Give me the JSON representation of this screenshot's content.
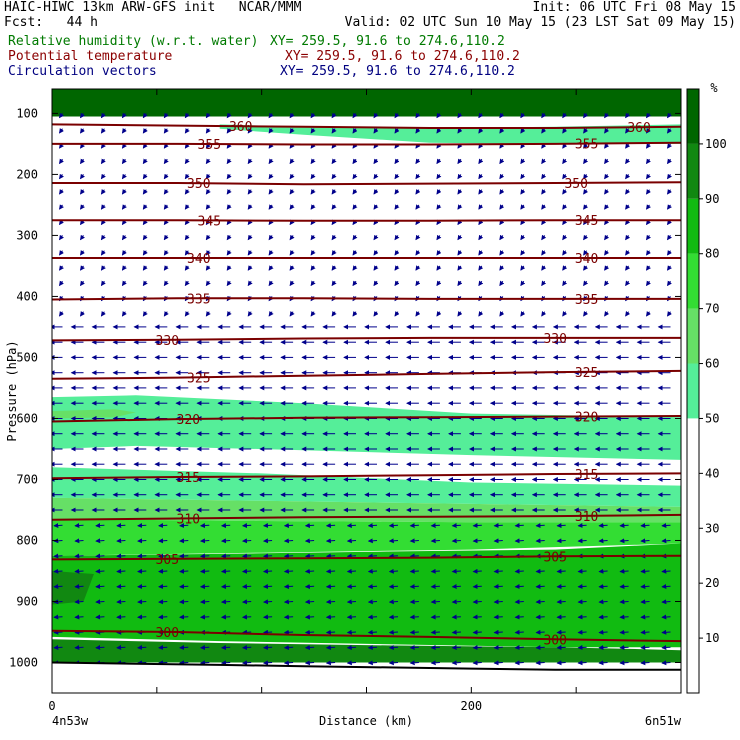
{
  "header": {
    "line1_left": "HAIC-HIWC 13km ARW-GFS init   NCAR/MMM",
    "line1_right": "Init: 06 UTC Fri 08 May 15",
    "line2_left": "Fcst:   44 h",
    "line2_right": "Valid: 02 UTC Sun 10 May 15 (23 LST Sat 09 May 15)",
    "field1_name": "Relative humidity (w.r.t. water)",
    "field1_xy": "XY= 259.5, 91.6 to 274.6,110.2",
    "field2_name": "Potential temperature",
    "field2_xy": "XY= 259.5, 91.6 to 274.6,110.2",
    "field3_name": "Circulation vectors",
    "field3_xy": "XY= 259.5, 91.6 to 274.6,110.2"
  },
  "colors": {
    "rh_text": "#007a00",
    "theta_text": "#8b0000",
    "vector_text": "#000080",
    "theta_line": "#7a0000",
    "vector": "#00008b"
  },
  "chart_data": {
    "type": "cross-section",
    "ylabel": "Pressure (hPa)",
    "xlabel": "Distance (km)",
    "x_ticks": [
      "0",
      "200"
    ],
    "x_end_labels": [
      "4n53w",
      "6n51w"
    ],
    "y_ticks": [
      "100",
      "200",
      "300",
      "400",
      "500",
      "600",
      "700",
      "800",
      "900",
      "1000"
    ],
    "xlim": [
      0,
      300
    ],
    "ylim": [
      1050,
      60
    ],
    "colorbar": {
      "unit": "%",
      "ticks": [
        "10",
        "20",
        "30",
        "40",
        "50",
        "60",
        "70",
        "80",
        "90",
        "100"
      ],
      "levels": [
        0,
        50,
        60,
        70,
        80,
        90,
        100,
        110
      ],
      "colors": [
        "#ffffff",
        "#55ee99",
        "#66e066",
        "#33dd33",
        "#11bb11",
        "#118811",
        "#006600",
        "#ff8080"
      ]
    },
    "potential_temperature_contours": [
      {
        "value": 360,
        "label": "360",
        "x": [
          0,
          60,
          120,
          180,
          240,
          300
        ],
        "p": [
          118,
          120,
          122,
          124,
          124,
          122
        ]
      },
      {
        "value": 355,
        "label": "355",
        "x": [
          0,
          60,
          120,
          180,
          240,
          300
        ],
        "p": [
          150,
          150,
          151,
          151,
          150,
          148
        ]
      },
      {
        "value": 350,
        "label": "350",
        "x": [
          0,
          60,
          120,
          180,
          240,
          300
        ],
        "p": [
          214,
          214,
          216,
          215,
          214,
          213
        ]
      },
      {
        "value": 345,
        "label": "345",
        "x": [
          0,
          60,
          120,
          180,
          240,
          300
        ],
        "p": [
          275,
          275,
          276,
          276,
          275,
          275
        ]
      },
      {
        "value": 340,
        "label": "340",
        "x": [
          0,
          60,
          120,
          180,
          240,
          300
        ],
        "p": [
          337,
          337,
          337,
          337,
          337,
          337
        ]
      },
      {
        "value": 335,
        "label": "335",
        "x": [
          0,
          60,
          120,
          180,
          240,
          300
        ],
        "p": [
          405,
          403,
          403,
          404,
          404,
          404
        ]
      },
      {
        "value": 330,
        "label": "330",
        "x": [
          0,
          60,
          120,
          180,
          240,
          300
        ],
        "p": [
          472,
          471,
          469,
          468,
          468,
          468
        ]
      },
      {
        "value": 325,
        "label": "325",
        "x": [
          0,
          60,
          120,
          180,
          240,
          300
        ],
        "p": [
          535,
          533,
          530,
          527,
          524,
          522
        ]
      },
      {
        "value": 320,
        "label": "320",
        "x": [
          0,
          60,
          120,
          180,
          240,
          300
        ],
        "p": [
          605,
          601,
          599,
          598,
          597,
          596
        ]
      },
      {
        "value": 315,
        "label": "315",
        "x": [
          0,
          60,
          120,
          180,
          240,
          300
        ],
        "p": [
          698,
          696,
          695,
          693,
          691,
          690
        ]
      },
      {
        "value": 310,
        "label": "310",
        "x": [
          0,
          60,
          120,
          180,
          240,
          300
        ],
        "p": [
          766,
          764,
          762,
          761,
          760,
          758
        ]
      },
      {
        "value": 305,
        "label": "305",
        "x": [
          0,
          60,
          120,
          180,
          240,
          300
        ],
        "p": [
          831,
          830,
          829,
          828,
          826,
          825
        ]
      },
      {
        "value": 300,
        "label": "300",
        "x": [
          0,
          60,
          120,
          180,
          240,
          300
        ],
        "p": [
          948,
          950,
          955,
          958,
          962,
          965
        ]
      }
    ],
    "contour_label_positions": {
      "360": [
        90,
        280
      ],
      "355": [
        75,
        255
      ],
      "350": [
        70,
        250
      ],
      "345": [
        75,
        255
      ],
      "340": [
        70,
        255
      ],
      "335": [
        70,
        255
      ],
      "330": [
        55,
        240
      ],
      "325": [
        70,
        255
      ],
      "320": [
        65,
        255
      ],
      "315": [
        65,
        255
      ],
      "310": [
        65,
        255
      ],
      "305": [
        55,
        240
      ],
      "300": [
        55,
        240
      ]
    },
    "relative_humidity_regions": [
      {
        "rh": 100,
        "x": [
          0,
          300,
          300,
          0
        ],
        "p": [
          60,
          60,
          105,
          105
        ]
      },
      {
        "rh": 55,
        "x": [
          80,
          120,
          180,
          240,
          300,
          300,
          240,
          180,
          120,
          80
        ],
        "p": [
          118,
          122,
          124,
          122,
          118,
          150,
          150,
          148,
          135,
          125
        ]
      },
      {
        "rh": 55,
        "x": [
          0,
          40,
          120,
          200,
          300,
          300,
          200,
          120,
          40,
          0
        ],
        "p": [
          565,
          562,
          575,
          592,
          598,
          668,
          660,
          652,
          645,
          650
        ]
      },
      {
        "rh": 65,
        "x": [
          0,
          30,
          40,
          30,
          0
        ],
        "p": [
          588,
          585,
          590,
          598,
          600
        ]
      },
      {
        "rh": 55,
        "x": [
          0,
          100,
          200,
          300,
          300,
          200,
          100,
          0
        ],
        "p": [
          680,
          690,
          705,
          710,
          745,
          740,
          735,
          730
        ]
      },
      {
        "rh": 65,
        "x": [
          0,
          100,
          200,
          300,
          300,
          200,
          100,
          0
        ],
        "p": [
          730,
          735,
          740,
          745,
          770,
          770,
          768,
          765
        ]
      },
      {
        "rh": 75,
        "x": [
          0,
          100,
          200,
          300,
          300,
          200,
          100,
          0
        ],
        "p": [
          765,
          768,
          770,
          770,
          805,
          815,
          820,
          825
        ]
      },
      {
        "rh": 85,
        "x": [
          0,
          80,
          160,
          240,
          300,
          300,
          240,
          160,
          80,
          0
        ],
        "p": [
          825,
          822,
          818,
          815,
          805,
          975,
          975,
          970,
          965,
          958
        ]
      },
      {
        "rh": 95,
        "x": [
          0,
          20,
          15,
          0
        ],
        "p": [
          850,
          855,
          900,
          905
        ]
      },
      {
        "rh": 95,
        "x": [
          0,
          80,
          160,
          240,
          280,
          300,
          300,
          0
        ],
        "p": [
          962,
          968,
          972,
          975,
          978,
          980,
          1000,
          1000
        ]
      }
    ],
    "terrain": {
      "x": [
        0,
        40,
        80,
        120,
        160,
        200,
        240,
        280,
        300
      ],
      "p": [
        1000,
        1002,
        1004,
        1006,
        1008,
        1010,
        1012,
        1012,
        1012
      ]
    },
    "wind_vectors": {
      "description": "easterly flow throughout",
      "levels": [
        {
          "p_range": [
            100,
            450
          ],
          "u": -0.25,
          "v": 0.35
        },
        {
          "p_range": [
            450,
            760
          ],
          "u": -1.0,
          "v": 0.0
        },
        {
          "p_range": [
            760,
            1000
          ],
          "u": -0.7,
          "v": 0.05
        }
      ]
    }
  }
}
